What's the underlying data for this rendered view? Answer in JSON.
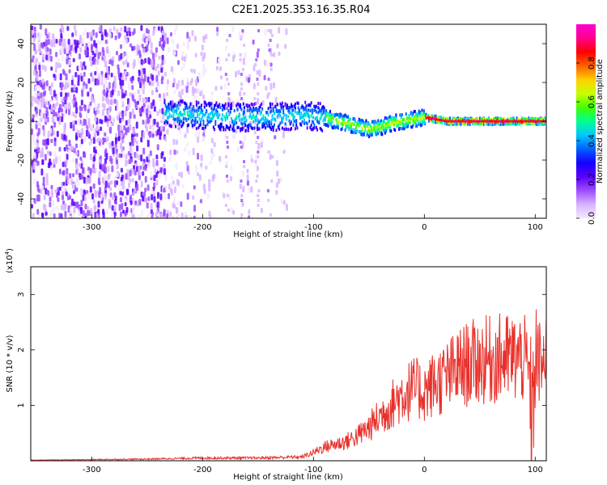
{
  "title": "C2E1.2025.353.16.35.R04",
  "chart_data": [
    {
      "type": "heatmap",
      "xlabel": "Height of straight line (km)",
      "ylabel": "Frequency (Hz)",
      "xlim": [
        -355,
        110
      ],
      "ylim": [
        -50,
        50
      ],
      "xticks": [
        -300,
        -200,
        -100,
        0,
        100
      ],
      "yticks": [
        -40,
        -20,
        0,
        20,
        40
      ],
      "colorbar": {
        "label": "Normalized spectral amplitude",
        "range": [
          0,
          1
        ],
        "ticks": [
          0.0,
          0.2,
          0.4,
          0.6,
          0.8
        ],
        "colors": [
          "#f4e8ff",
          "#d8b4ff",
          "#9b4cff",
          "#5a00ff",
          "#1400ff",
          "#0060ff",
          "#00c8ff",
          "#00ff90",
          "#40ff00",
          "#c8ff00",
          "#ffd000",
          "#ff6000",
          "#ff0000",
          "#ff0090",
          "#ff00d0"
        ]
      },
      "ridge": {
        "x": [
          -230,
          -200,
          -170,
          -140,
          -110,
          -90,
          -80,
          -70,
          -60,
          -50,
          -40,
          -30,
          -20,
          -10,
          0,
          20,
          40,
          60,
          80,
          95,
          110
        ],
        "center_hz": [
          4,
          3,
          2,
          2,
          3,
          2,
          0,
          -1,
          -3,
          -4,
          -3,
          -1,
          0,
          1,
          2,
          0,
          0,
          0,
          0,
          0,
          0
        ]
      }
    },
    {
      "type": "line",
      "xlabel": "Height of straight line (km)",
      "ylabel": "SNR (10 * v/v)",
      "y_multiplier": "(x10",
      "y_multiplier_exp": "4",
      "y_multiplier_close": ")",
      "xlim": [
        -355,
        110
      ],
      "ylim": [
        0,
        3.5
      ],
      "xticks": [
        -300,
        -200,
        -100,
        0,
        100
      ],
      "yticks": [
        1,
        2,
        3
      ],
      "color": "#e8302a",
      "series": [
        {
          "name": "SNR",
          "x": [
            -355,
            -300,
            -250,
            -200,
            -150,
            -110,
            -100,
            -90,
            -80,
            -70,
            -60,
            -50,
            -40,
            -30,
            -20,
            -10,
            0,
            10,
            20,
            30,
            40,
            50,
            60,
            70,
            80,
            90,
            95,
            97,
            100,
            105,
            110
          ],
          "y": [
            0.01,
            0.02,
            0.03,
            0.05,
            0.05,
            0.07,
            0.15,
            0.25,
            0.3,
            0.35,
            0.45,
            0.6,
            0.8,
            1.0,
            1.2,
            1.3,
            1.25,
            1.4,
            1.5,
            1.65,
            1.75,
            1.8,
            1.82,
            1.85,
            1.85,
            1.85,
            1.5,
            0.6,
            1.8,
            1.75,
            1.75
          ]
        }
      ]
    }
  ]
}
